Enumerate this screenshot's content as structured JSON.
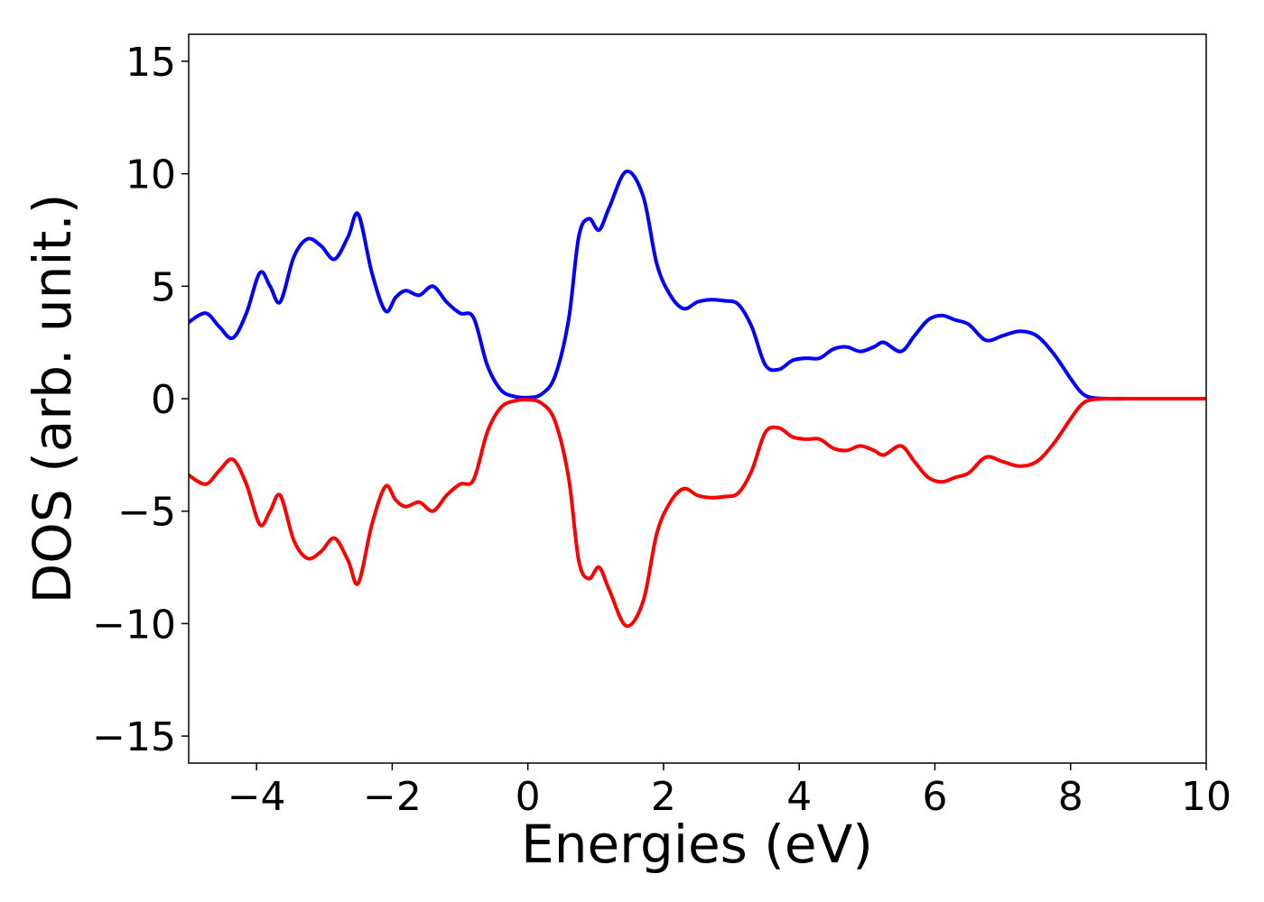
{
  "chart_data": {
    "type": "line",
    "xlabel": "Energies (eV)",
    "ylabel": "DOS (arb. unit.)",
    "xlim": [
      -5,
      10
    ],
    "ylim": [
      -16.2,
      16.2
    ],
    "xticks": [
      -4,
      -2,
      0,
      2,
      4,
      6,
      8,
      10
    ],
    "xtick_labels": [
      "−4",
      "−2",
      "0",
      "2",
      "4",
      "6",
      "8",
      "10"
    ],
    "yticks": [
      15,
      10,
      5,
      0,
      -5,
      -10,
      -15
    ],
    "ytick_labels": [
      "15",
      "10",
      "5",
      "0",
      "−5",
      "−10",
      "−15"
    ],
    "grid": false,
    "series": [
      {
        "color": "#0000ff",
        "x": [
          -5.0,
          -4.75,
          -4.55,
          -4.35,
          -4.15,
          -3.95,
          -3.8,
          -3.65,
          -3.45,
          -3.25,
          -3.05,
          -2.85,
          -2.65,
          -2.5,
          -2.3,
          -2.1,
          -1.95,
          -1.8,
          -1.6,
          -1.4,
          -1.2,
          -1.0,
          -0.8,
          -0.6,
          -0.4,
          -0.2,
          0.0,
          0.2,
          0.4,
          0.6,
          0.75,
          0.9,
          1.05,
          1.2,
          1.45,
          1.7,
          1.9,
          2.1,
          2.3,
          2.5,
          2.7,
          2.9,
          3.1,
          3.3,
          3.5,
          3.7,
          3.9,
          4.1,
          4.3,
          4.5,
          4.7,
          4.9,
          5.1,
          5.25,
          5.5,
          5.7,
          5.9,
          6.1,
          6.3,
          6.5,
          6.75,
          7.0,
          7.25,
          7.5,
          7.75,
          8.0,
          8.15,
          8.3,
          8.6,
          9.0,
          9.5,
          10.0
        ],
        "y": [
          3.4,
          3.8,
          3.2,
          2.7,
          3.8,
          5.6,
          5.0,
          4.3,
          6.3,
          7.1,
          6.8,
          6.2,
          7.2,
          8.2,
          5.6,
          3.9,
          4.5,
          4.8,
          4.6,
          5.0,
          4.3,
          3.8,
          3.6,
          1.5,
          0.4,
          0.1,
          0.05,
          0.2,
          1.0,
          3.5,
          7.2,
          8.0,
          7.5,
          8.5,
          10.1,
          9.0,
          6.0,
          4.6,
          4.0,
          4.3,
          4.4,
          4.35,
          4.2,
          3.2,
          1.5,
          1.3,
          1.7,
          1.8,
          1.8,
          2.2,
          2.3,
          2.1,
          2.3,
          2.5,
          2.1,
          2.8,
          3.5,
          3.7,
          3.5,
          3.3,
          2.6,
          2.8,
          3.0,
          2.8,
          2.0,
          0.9,
          0.3,
          0.05,
          0.0,
          0.0,
          0.0,
          0.0
        ]
      },
      {
        "color": "#ff0000",
        "x": [
          -5.0,
          -4.75,
          -4.55,
          -4.35,
          -4.15,
          -3.95,
          -3.8,
          -3.65,
          -3.45,
          -3.25,
          -3.05,
          -2.85,
          -2.65,
          -2.5,
          -2.3,
          -2.1,
          -1.95,
          -1.8,
          -1.6,
          -1.4,
          -1.2,
          -1.0,
          -0.8,
          -0.6,
          -0.4,
          -0.2,
          0.0,
          0.2,
          0.4,
          0.6,
          0.75,
          0.9,
          1.05,
          1.2,
          1.45,
          1.7,
          1.9,
          2.1,
          2.3,
          2.5,
          2.7,
          2.9,
          3.1,
          3.3,
          3.5,
          3.7,
          3.9,
          4.1,
          4.3,
          4.5,
          4.7,
          4.9,
          5.1,
          5.25,
          5.5,
          5.7,
          5.9,
          6.1,
          6.3,
          6.5,
          6.75,
          7.0,
          7.25,
          7.5,
          7.75,
          8.0,
          8.15,
          8.3,
          8.6,
          9.0,
          9.5,
          10.0
        ],
        "y": [
          -3.4,
          -3.8,
          -3.2,
          -2.7,
          -3.8,
          -5.6,
          -5.0,
          -4.3,
          -6.3,
          -7.1,
          -6.8,
          -6.2,
          -7.2,
          -8.2,
          -5.6,
          -3.9,
          -4.5,
          -4.8,
          -4.6,
          -5.0,
          -4.3,
          -3.8,
          -3.6,
          -1.5,
          -0.4,
          -0.1,
          -0.05,
          -0.2,
          -1.0,
          -3.5,
          -7.2,
          -8.0,
          -7.5,
          -8.5,
          -10.1,
          -9.0,
          -6.0,
          -4.6,
          -4.0,
          -4.3,
          -4.4,
          -4.35,
          -4.2,
          -3.2,
          -1.5,
          -1.3,
          -1.7,
          -1.8,
          -1.8,
          -2.2,
          -2.3,
          -2.1,
          -2.3,
          -2.5,
          -2.1,
          -2.8,
          -3.5,
          -3.7,
          -3.5,
          -3.3,
          -2.6,
          -2.8,
          -3.0,
          -2.8,
          -2.0,
          -0.9,
          -0.3,
          -0.05,
          0.0,
          0.0,
          0.0,
          0.0
        ]
      }
    ]
  }
}
